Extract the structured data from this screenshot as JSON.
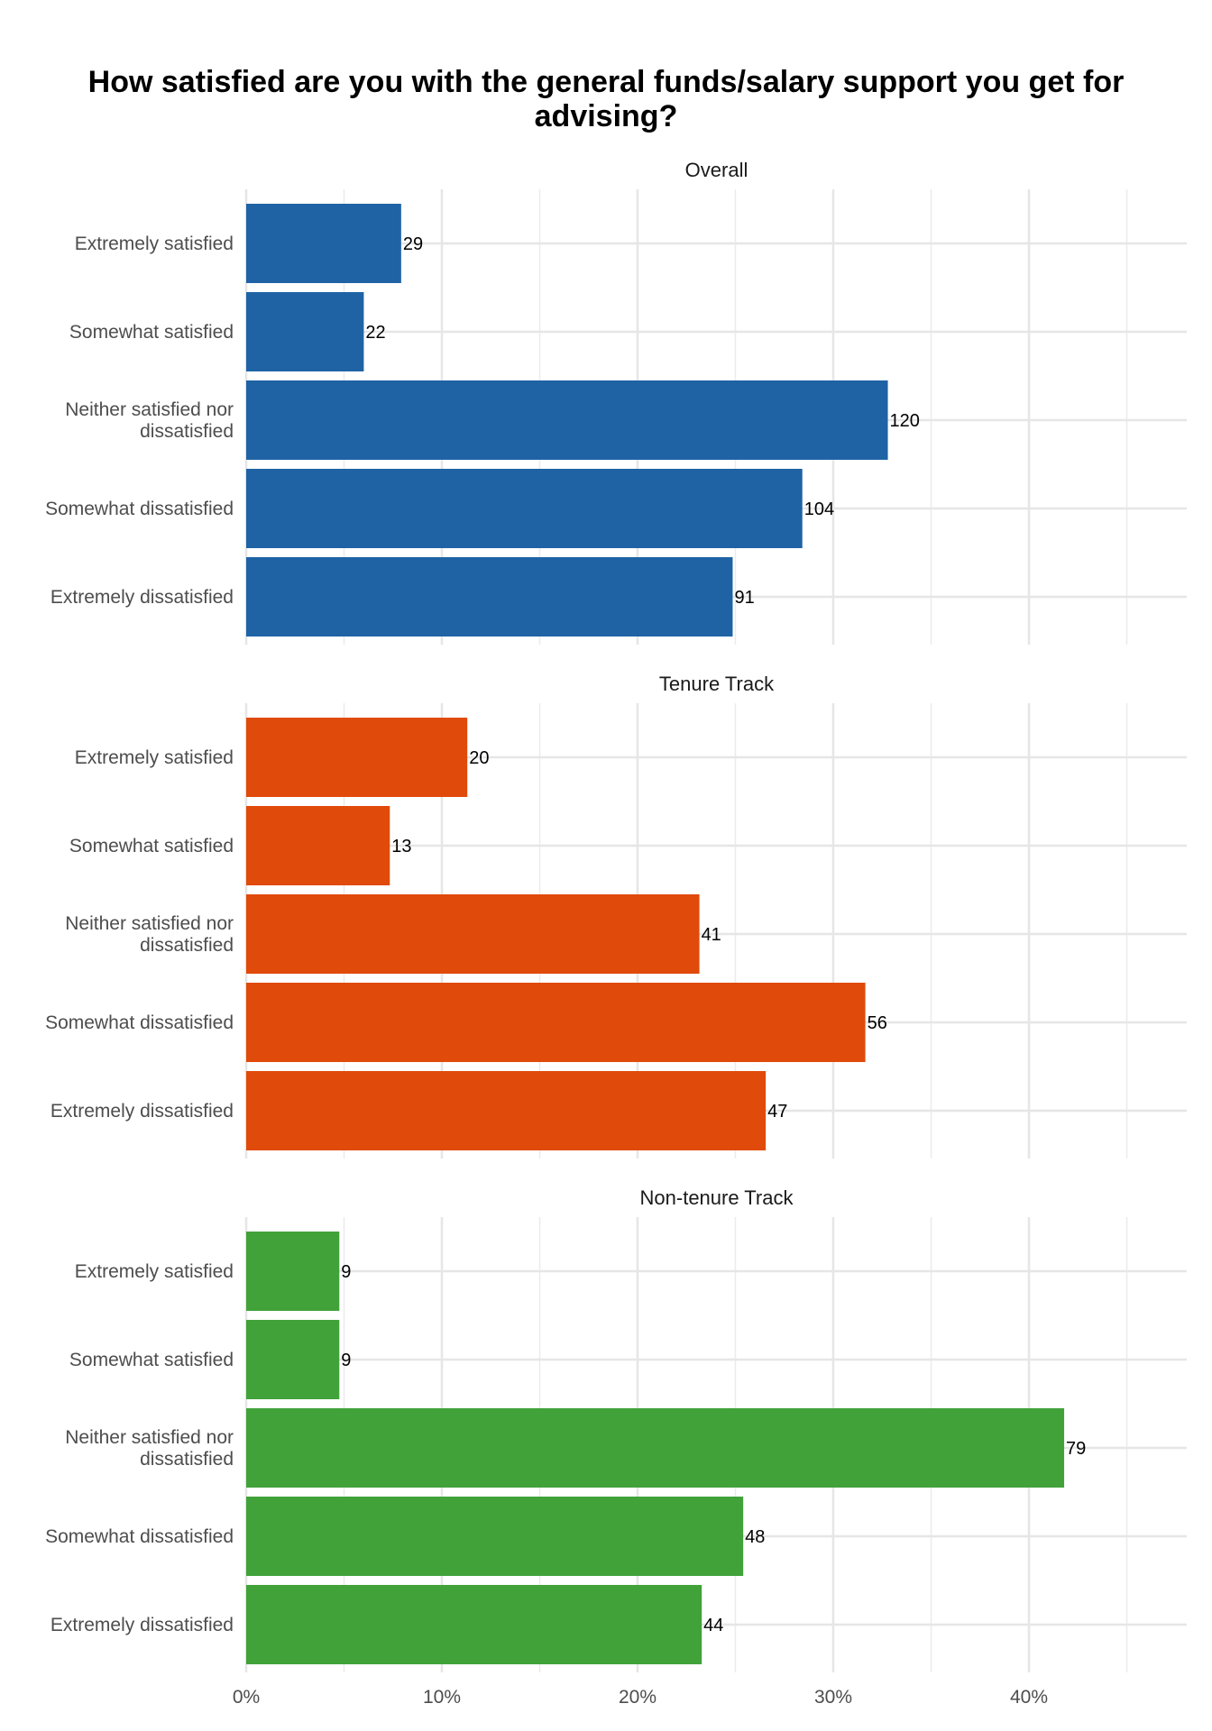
{
  "chart_data": {
    "type": "bar",
    "orientation": "horizontal",
    "title": "How satisfied are you with the general funds/salary support you get for advising?",
    "xlabel": "",
    "ylabel": "",
    "xlim": [
      0,
      0.48
    ],
    "x_ticks": [
      0,
      0.1,
      0.2,
      0.3,
      0.4
    ],
    "x_tick_labels": [
      "0%",
      "10%",
      "20%",
      "30%",
      "40%"
    ],
    "grid": true,
    "categories": [
      "Extremely satisfied",
      "Somewhat satisfied",
      "Neither satisfied nor dissatisfied",
      "Somewhat dissatisfied",
      "Extremely dissatisfied"
    ],
    "category_lines": [
      [
        "Extremely satisfied"
      ],
      [
        "Somewhat satisfied"
      ],
      [
        "Neither satisfied nor",
        "dissatisfied"
      ],
      [
        "Somewhat dissatisfied"
      ],
      [
        "Extremely dissatisfied"
      ]
    ],
    "panels": [
      {
        "name": "Overall",
        "color": "#1f63a5",
        "counts": [
          29,
          22,
          120,
          104,
          91
        ],
        "percents": [
          0.0792,
          0.0601,
          0.3279,
          0.2842,
          0.2486
        ]
      },
      {
        "name": "Tenure Track",
        "color": "#e04a0a",
        "counts": [
          20,
          13,
          41,
          56,
          47
        ],
        "percents": [
          0.113,
          0.0734,
          0.2316,
          0.3164,
          0.2655
        ]
      },
      {
        "name": "Non-tenure Track",
        "color": "#41a23a",
        "counts": [
          9,
          9,
          79,
          48,
          44
        ],
        "percents": [
          0.0476,
          0.0476,
          0.418,
          0.254,
          0.2328
        ]
      }
    ]
  }
}
